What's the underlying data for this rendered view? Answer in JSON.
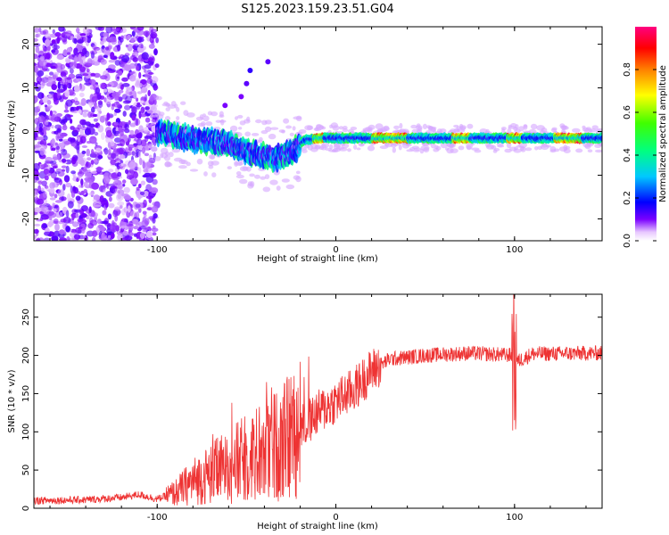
{
  "title": "S125.2023.159.23.51.G04",
  "colors": {
    "snr_line": "#ee3333",
    "axis": "#000000"
  },
  "chart_data": [
    {
      "type": "heatmap",
      "name": "spectrogram",
      "xlabel": "Height of straight line (km)",
      "ylabel": "Frequency (Hz)",
      "xlim": [
        -169,
        149
      ],
      "ylim": [
        -25,
        24
      ],
      "xticks": [
        -100,
        0,
        100
      ],
      "xtick_labels": [
        "-100",
        "0",
        "100"
      ],
      "yticks": [
        -20,
        -10,
        0,
        10,
        20
      ],
      "ytick_labels": [
        "-20",
        "-10",
        "0",
        "10",
        "20"
      ],
      "colorbar": {
        "label": "Normalized spectral amplitude",
        "range": [
          0,
          1
        ],
        "ticks": [
          0.0,
          0.2,
          0.4,
          0.6,
          0.8
        ],
        "tick_labels": [
          "0.0",
          "0.2",
          "0.4",
          "0.6",
          "0.8"
        ]
      },
      "description_points": [
        {
          "x": -169,
          "f": 0
        },
        {
          "x": -100,
          "f": 0
        },
        {
          "x": -90,
          "f": -1
        },
        {
          "x": -75,
          "f": -2
        },
        {
          "x": -60,
          "f": -3
        },
        {
          "x": -45,
          "f": -5
        },
        {
          "x": -35,
          "f": -6
        },
        {
          "x": -25,
          "f": -5
        },
        {
          "x": -18,
          "f": -2
        },
        {
          "x": -10,
          "f": -1.5
        },
        {
          "x": 0,
          "f": -1.5
        },
        {
          "x": 50,
          "f": -1.5
        },
        {
          "x": 100,
          "f": -1.5
        },
        {
          "x": 149,
          "f": -1.5
        }
      ]
    },
    {
      "type": "line",
      "name": "snr",
      "xlabel": "Height of straight line (km)",
      "ylabel": "SNR (10 * v/v)",
      "xlim": [
        -169,
        149
      ],
      "ylim": [
        0,
        280
      ],
      "xticks": [
        -100,
        0,
        100
      ],
      "xtick_labels": [
        "-100",
        "0",
        "100"
      ],
      "yticks": [
        0,
        50,
        100,
        150,
        200,
        250
      ],
      "ytick_labels": [
        "0",
        "50",
        "100",
        "150",
        "200",
        "250"
      ],
      "trend": [
        {
          "x": -169,
          "y": 10
        },
        {
          "x": -140,
          "y": 11
        },
        {
          "x": -120,
          "y": 14
        },
        {
          "x": -110,
          "y": 18
        },
        {
          "x": -100,
          "y": 12
        },
        {
          "x": -90,
          "y": 20
        },
        {
          "x": -80,
          "y": 35
        },
        {
          "x": -70,
          "y": 45
        },
        {
          "x": -60,
          "y": 55
        },
        {
          "x": -50,
          "y": 65
        },
        {
          "x": -40,
          "y": 75
        },
        {
          "x": -30,
          "y": 85
        },
        {
          "x": -20,
          "y": 105
        },
        {
          "x": -10,
          "y": 125
        },
        {
          "x": 0,
          "y": 140
        },
        {
          "x": 10,
          "y": 155
        },
        {
          "x": 20,
          "y": 180
        },
        {
          "x": 30,
          "y": 195
        },
        {
          "x": 50,
          "y": 200
        },
        {
          "x": 75,
          "y": 203
        },
        {
          "x": 99,
          "y": 200
        },
        {
          "x": 100,
          "y": 190
        },
        {
          "x": 110,
          "y": 202
        },
        {
          "x": 149,
          "y": 203
        }
      ]
    }
  ]
}
